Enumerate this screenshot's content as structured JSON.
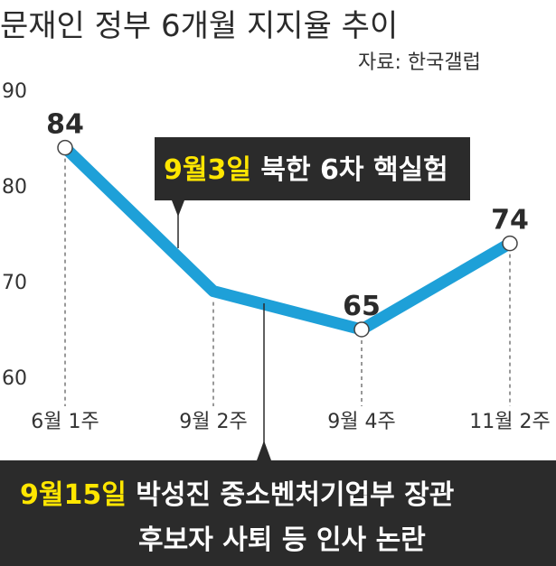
{
  "chart_data": {
    "type": "line",
    "title": "문재인 정부 6개월 지지율 추이",
    "source": "자료: 한국갤럽",
    "categories": [
      "6월 1주",
      "9월 2주",
      "9월 4주",
      "11월 2주"
    ],
    "x_labels": [
      "6월 1주",
      "9월 2주",
      "9월 4주",
      "11월 2주"
    ],
    "points": [
      {
        "x": "6월 1주",
        "y": 84,
        "label": "84",
        "marker": true
      },
      {
        "x": "9월 2주",
        "y": 69,
        "label": "",
        "marker": false
      },
      {
        "x": "9월 4주",
        "y": 65,
        "label": "65",
        "marker": true
      },
      {
        "x": "11월 2주",
        "y": 74,
        "label": "74",
        "marker": true
      }
    ],
    "yticks": [
      "90",
      "80",
      "70",
      "60"
    ],
    "ylim": [
      60,
      90
    ],
    "grid": false,
    "line_color": "#1ea0d8",
    "annotations": [
      {
        "highlight": "9월3일",
        "text": " 북한 6차 핵실험",
        "lines": []
      },
      {
        "highlight": "9월15일",
        "text": " 박성진 중소벤처기업부 장관",
        "lines": [
          "후보자 사퇴 등 인사 논란"
        ]
      }
    ]
  },
  "colors": {
    "line": "#1ea0d8",
    "callout_bg": "#2b2b2b",
    "highlight": "#ffe600"
  }
}
